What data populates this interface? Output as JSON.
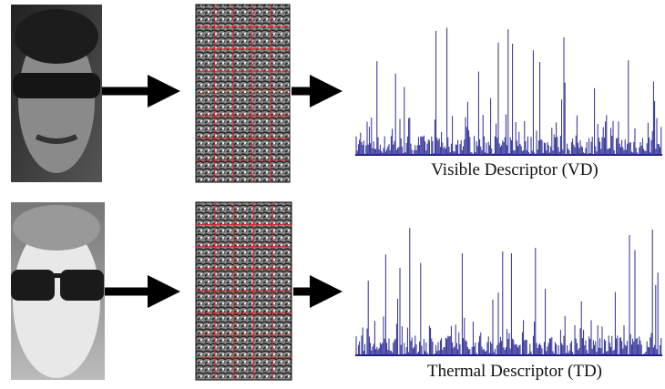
{
  "panels": [
    {
      "label": "Visible Descriptor (VD)"
    },
    {
      "label": "Thermal Descriptor (TD)"
    }
  ]
}
